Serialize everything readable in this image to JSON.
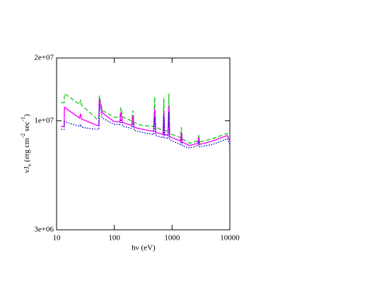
{
  "chart_data": {
    "type": "line",
    "x_label": "hν (eV)",
    "y_label": [
      "νJ",
      "ν",
      " (erg cm",
      "-2",
      " sec",
      "-1",
      ")"
    ],
    "xlog": true,
    "ylog": true,
    "xlim": [
      10,
      10000
    ],
    "xticks": [
      10,
      100,
      1000,
      10000
    ],
    "ylim": [
      3000000,
      20000000
    ],
    "yticks": [
      {
        "value": 3000000,
        "label": "3e+06"
      },
      {
        "value": 10000000,
        "label": "1e+07"
      },
      {
        "value": 20000000,
        "label": "2e+07"
      }
    ],
    "x": [
      12,
      13.5,
      13.7,
      25,
      26,
      27,
      50,
      54,
      55,
      62,
      100,
      125,
      130,
      140,
      200,
      210,
      220,
      300,
      480,
      500,
      520,
      700,
      720,
      740,
      850,
      880,
      910,
      1000,
      1400,
      1450,
      1500,
      2000,
      2800,
      2900,
      3000,
      5000,
      9000,
      10000
    ],
    "series": [
      {
        "color": "#22cc22",
        "style": "dashed",
        "values": [
          12200000,
          12200000,
          13500000,
          12000000,
          12600000,
          11900000,
          10200000,
          10200000,
          13200000,
          11200000,
          10400000,
          10400000,
          11600000,
          10400000,
          10000000,
          11200000,
          9800000,
          9500000,
          9400000,
          13000000,
          9300000,
          9000000,
          12800000,
          9000000,
          8900000,
          13500000,
          8800000,
          8600000,
          8300000,
          9300000,
          8200000,
          7800000,
          8000000,
          8600000,
          7900000,
          8200000,
          8700000,
          8300000
        ]
      },
      {
        "color": "#ff00ff",
        "style": "solid",
        "values": [
          9400000,
          9400000,
          11600000,
          10300000,
          10800000,
          10200000,
          9500000,
          9500000,
          12800000,
          10900000,
          9900000,
          9900000,
          11000000,
          9800000,
          9500000,
          10600000,
          9300000,
          9100000,
          8900000,
          11400000,
          8800000,
          8600000,
          11200000,
          8600000,
          8500000,
          11800000,
          8400000,
          8300000,
          8000000,
          8800000,
          7900000,
          7600000,
          7800000,
          8300000,
          7700000,
          8000000,
          8500000,
          8000000
        ]
      },
      {
        "color": "#0000cc",
        "style": "dotted",
        "values": [
          9100000,
          9100000,
          9900000,
          9400000,
          9600000,
          9300000,
          9100000,
          9100000,
          12000000,
          10300000,
          9600000,
          9600000,
          10200000,
          9400000,
          9200000,
          9900000,
          9000000,
          8800000,
          8600000,
          10500000,
          8500000,
          8300000,
          10500000,
          8300000,
          8200000,
          11000000,
          8100000,
          8000000,
          7700000,
          8300000,
          7600000,
          7400000,
          7600000,
          8000000,
          7500000,
          7700000,
          8200000,
          7700000
        ]
      }
    ]
  }
}
